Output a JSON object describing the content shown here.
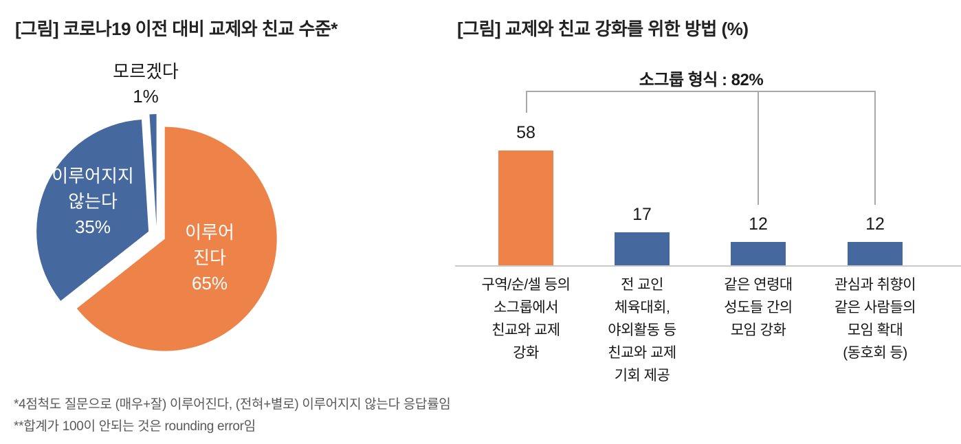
{
  "colors": {
    "orange": "#EE8349",
    "blue": "#45689E",
    "bracket_gray": "#a9a9a9",
    "axis_gray": "#c9c9c9",
    "footnote_gray": "#595959"
  },
  "chart_data": [
    {
      "type": "pie",
      "title": "[그림] 코로나19 이전 대비 교제와 친교 수준*",
      "start_angle_deg": 0,
      "direction": "clockwise",
      "exploded": true,
      "slices": [
        {
          "label": "이루어진다",
          "value": 65,
          "color": "#EE8349",
          "display": "이루어\n진다\n65%"
        },
        {
          "label": "이루어지지 않는다",
          "value": 35,
          "color": "#45689E",
          "display": "이루어지지\n않는다\n35%"
        },
        {
          "label": "모르겠다",
          "value": 1,
          "color": "#45689E",
          "display": "모르겠다\n1%"
        }
      ],
      "footnotes": [
        "*4점척도 질문으로 (매우+잘) 이루어진다, (전혀+별로) 이루어지지 않는다 응답률임",
        "**합계가 100이 안되는 것은 rounding error임"
      ]
    },
    {
      "type": "bar",
      "title": "[그림] 교제와 친교 강화를 위한 방법 (%)",
      "categories": [
        "구역/순/셀 등의 소그룹에서 친교와 교제 강화",
        "전 교인 체육대회, 야외활동 등 친교와 교제 기회 제공",
        "같은 연령대 성도들 간의 모임 강화",
        "관심과 취향이 같은 사람들의 모임 확대 (동호회 등)"
      ],
      "categories_display": [
        "구역/순/셀 등의\n소그룹에서\n친교와 교제\n강화",
        "전 교인\n체육대회,\n야외활동 등\n친교와 교제\n기회 제공",
        "같은 연령대\n성도들 간의\n모임 강화",
        "관심과 취향이\n같은 사람들의\n모임 확대\n(동호회 등)"
      ],
      "values": [
        58,
        17,
        12,
        12
      ],
      "bar_colors": [
        "#EE8349",
        "#45689E",
        "#45689E",
        "#45689E"
      ],
      "ylim": [
        0,
        65
      ],
      "grid": false,
      "legend": "none",
      "annotation": {
        "text": "소그룹 형식 : 82%",
        "covers_bars": [
          0,
          2,
          3
        ],
        "sum": "82%"
      }
    }
  ]
}
